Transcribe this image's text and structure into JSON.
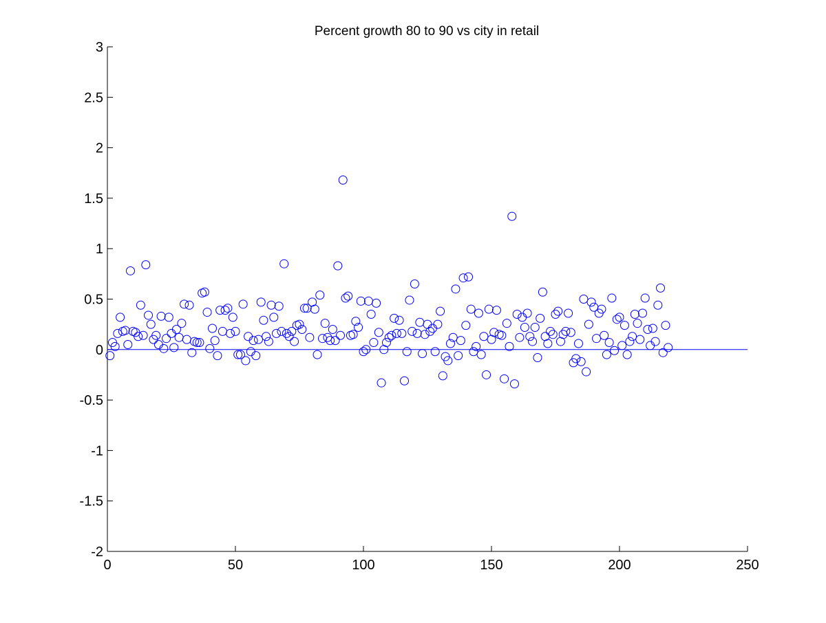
{
  "chart_data": {
    "type": "scatter",
    "title": "Percent growth 80 to 90 vs city in retail",
    "xlabel": "",
    "ylabel": "",
    "xlim": [
      0,
      250
    ],
    "ylim": [
      -2,
      3
    ],
    "xticks": [
      0,
      50,
      100,
      150,
      200,
      250
    ],
    "yticks": [
      -2,
      -1.5,
      -1,
      -0.5,
      0,
      0.5,
      1,
      1.5,
      2,
      2.5,
      3
    ],
    "xtick_labels": [
      "0",
      "50",
      "100",
      "150",
      "200",
      "250"
    ],
    "ytick_labels": [
      "-2",
      "-1.5",
      "-1",
      "-0.5",
      "0",
      "0.5",
      "1",
      "1.5",
      "2",
      "2.5",
      "3"
    ],
    "grid": false,
    "reference_line": {
      "y": 0,
      "x_start": 0,
      "x_end": 250
    },
    "marker": "open-circle",
    "color": "#0000ff",
    "series": [
      {
        "x": [
          1,
          2,
          3,
          4,
          5,
          6,
          7,
          8,
          9,
          10,
          11,
          12,
          13,
          14,
          15,
          16,
          17,
          18,
          19,
          20,
          21,
          22,
          23,
          24,
          25,
          26,
          27,
          28,
          29,
          30,
          31,
          32,
          33,
          34,
          35,
          36,
          37,
          38,
          39,
          40,
          41,
          42,
          43,
          44,
          45,
          46,
          47,
          48,
          49,
          50,
          51,
          52,
          53,
          54,
          55,
          56,
          57,
          58,
          59,
          60,
          61,
          62,
          63,
          64,
          65,
          66,
          67,
          68,
          69,
          70,
          71,
          72,
          73,
          74,
          75,
          76,
          77,
          78,
          79,
          80,
          81,
          82,
          83,
          84,
          85,
          86,
          87,
          88,
          89,
          90,
          91,
          92,
          93,
          94,
          95,
          96,
          97,
          98,
          99,
          100,
          101,
          102,
          103,
          104,
          105,
          106,
          107,
          108,
          109,
          110,
          111,
          112,
          113,
          114,
          115,
          116,
          117,
          118,
          119,
          120,
          121,
          122,
          123,
          124,
          125,
          126,
          127,
          128,
          129,
          130,
          131,
          132,
          133,
          134,
          135,
          136,
          137,
          138,
          139,
          140,
          141,
          142,
          143,
          144,
          145,
          146,
          147,
          148,
          149,
          150,
          151,
          152,
          153,
          154,
          155,
          156,
          157,
          158,
          159,
          160,
          161,
          162,
          163,
          164,
          165,
          166,
          167,
          168,
          169,
          170,
          171,
          172,
          173,
          174,
          175,
          176,
          177,
          178,
          179,
          180,
          181,
          182,
          183,
          184,
          185,
          186,
          187,
          188,
          189,
          190,
          191,
          192,
          193,
          194,
          195,
          196,
          197,
          198,
          199,
          200,
          201,
          202,
          203,
          204,
          205,
          206,
          207,
          208,
          209,
          210,
          211,
          212,
          213,
          214,
          215,
          216,
          217,
          218,
          219
        ],
        "y": [
          -0.06,
          0.07,
          0.03,
          0.16,
          0.32,
          0.18,
          0.19,
          0.05,
          0.78,
          0.18,
          0.17,
          0.13,
          0.44,
          0.14,
          0.84,
          0.34,
          0.25,
          0.1,
          0.14,
          0.05,
          0.33,
          0.01,
          0.11,
          0.32,
          0.16,
          0.02,
          0.2,
          0.12,
          0.26,
          0.45,
          0.1,
          0.44,
          -0.03,
          0.08,
          0.07,
          0.07,
          0.56,
          0.57,
          0.37,
          0.01,
          0.21,
          0.09,
          -0.06,
          0.39,
          0.18,
          0.39,
          0.41,
          0.16,
          0.32,
          0.18,
          -0.05,
          -0.05,
          0.45,
          -0.11,
          0.13,
          -0.02,
          0.09,
          -0.06,
          0.1,
          0.47,
          0.29,
          0.13,
          0.08,
          0.44,
          0.32,
          0.16,
          0.43,
          0.18,
          0.85,
          0.16,
          0.13,
          0.18,
          0.08,
          0.24,
          0.25,
          0.2,
          0.41,
          0.41,
          0.12,
          0.47,
          0.4,
          -0.05,
          0.54,
          0.11,
          0.26,
          0.12,
          0.09,
          0.2,
          0.09,
          0.83,
          0.14,
          1.68,
          0.51,
          0.53,
          0.14,
          0.15,
          0.28,
          0.22,
          0.48,
          -0.02,
          0.0,
          0.48,
          0.35,
          0.07,
          0.46,
          0.17,
          -0.33,
          0.0,
          0.07,
          0.12,
          0.14,
          0.31,
          0.16,
          0.29,
          0.16,
          -0.31,
          -0.02,
          0.49,
          0.18,
          0.65,
          0.16,
          0.27,
          -0.04,
          0.15,
          0.25,
          0.18,
          0.21,
          -0.02,
          0.25,
          0.38,
          -0.26,
          -0.07,
          -0.11,
          0.06,
          0.12,
          0.6,
          -0.06,
          0.09,
          0.71,
          0.24,
          0.72,
          0.4,
          -0.02,
          0.03,
          0.36,
          -0.05,
          0.13,
          -0.25,
          0.4,
          0.1,
          0.17,
          0.39,
          0.15,
          0.14,
          -0.29,
          0.26,
          0.03,
          1.32,
          -0.34,
          0.35,
          0.12,
          0.32,
          0.22,
          0.36,
          0.13,
          0.08,
          0.22,
          -0.08,
          0.31,
          0.57,
          0.13,
          0.06,
          0.18,
          0.15,
          0.35,
          0.38,
          0.08,
          0.15,
          0.18,
          0.36,
          0.17,
          -0.13,
          -0.09,
          0.06,
          -0.12,
          0.5,
          -0.22,
          0.25,
          0.47,
          0.42,
          0.11,
          0.36,
          0.4,
          0.14,
          -0.05,
          0.07,
          0.51,
          -0.01,
          0.3,
          0.32,
          0.04,
          0.24,
          -0.05,
          0.08,
          0.13,
          0.35,
          0.26,
          0.1,
          0.36,
          0.51,
          0.2,
          0.04,
          0.21,
          0.08,
          0.44,
          0.61,
          -0.03,
          0.24,
          0.02
        ]
      }
    ]
  }
}
